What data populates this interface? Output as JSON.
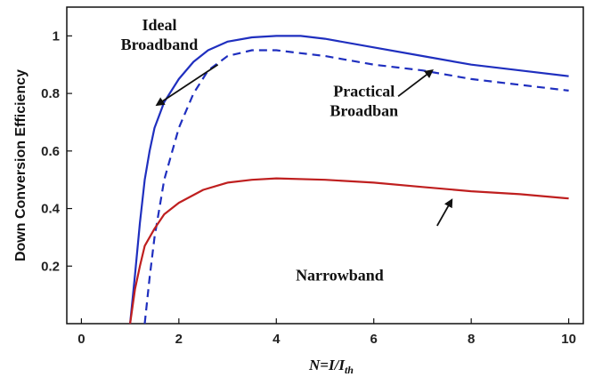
{
  "chart_data": {
    "type": "line",
    "title": "",
    "ylabel": "Down Conversion Efficiency",
    "xlabel": {
      "main": "N=I/I",
      "sub": "th"
    },
    "xlim": [
      -0.3,
      10.3
    ],
    "ylim": [
      0,
      1.1
    ],
    "xticks": [
      0,
      2,
      4,
      6,
      8,
      10
    ],
    "yticks": [
      0.2,
      0.4,
      0.6,
      0.8,
      1
    ],
    "xtick_labels": [
      "0",
      "2",
      "4",
      "6",
      "8",
      "10"
    ],
    "ytick_labels": [
      "0.2",
      "0.4",
      "0.6",
      "0.8",
      "1"
    ],
    "grid": false,
    "series": [
      {
        "name": "Ideal Broadband",
        "color": "#1f2fbf",
        "style": "solid",
        "x": [
          1.0,
          1.1,
          1.2,
          1.3,
          1.4,
          1.5,
          1.7,
          2.0,
          2.3,
          2.6,
          3.0,
          3.5,
          4.0,
          4.5,
          5.0,
          6.0,
          7.0,
          8.0,
          9.0,
          10.0
        ],
        "y": [
          0.0,
          0.17,
          0.35,
          0.5,
          0.6,
          0.68,
          0.77,
          0.85,
          0.91,
          0.95,
          0.98,
          0.995,
          1.0,
          1.0,
          0.99,
          0.96,
          0.93,
          0.9,
          0.88,
          0.86
        ]
      },
      {
        "name": "Practical Broadban",
        "color": "#1f2fbf",
        "style": "dashed",
        "x": [
          1.3,
          1.4,
          1.5,
          1.7,
          2.0,
          2.3,
          2.6,
          3.0,
          3.5,
          4.0,
          4.5,
          5.0,
          6.0,
          7.0,
          8.0,
          9.0,
          10.0
        ],
        "y": [
          0.0,
          0.16,
          0.3,
          0.5,
          0.68,
          0.8,
          0.88,
          0.93,
          0.95,
          0.95,
          0.94,
          0.93,
          0.9,
          0.88,
          0.85,
          0.83,
          0.81
        ]
      },
      {
        "name": "Narrowband",
        "color": "#bf1f1f",
        "style": "solid",
        "x": [
          1.0,
          1.1,
          1.2,
          1.3,
          1.5,
          1.7,
          2.0,
          2.5,
          3.0,
          3.5,
          4.0,
          5.0,
          6.0,
          7.0,
          8.0,
          9.0,
          10.0
        ],
        "y": [
          0.0,
          0.12,
          0.2,
          0.27,
          0.33,
          0.38,
          0.42,
          0.465,
          0.49,
          0.5,
          0.505,
          0.5,
          0.49,
          0.475,
          0.46,
          0.45,
          0.435
        ]
      }
    ],
    "annotations": [
      {
        "lines": [
          "Ideal",
          "Broadband"
        ],
        "text_at": [
          1.6,
          1.02
        ],
        "arrow_from": [
          2.8,
          0.9
        ],
        "arrow_to": [
          1.55,
          0.76
        ]
      },
      {
        "lines": [
          "Practical",
          "Broadban"
        ],
        "text_at": [
          5.8,
          0.79
        ],
        "arrow_from": [
          6.5,
          0.79
        ],
        "arrow_to": [
          7.2,
          0.88
        ]
      },
      {
        "lines": [
          "Narrowband"
        ],
        "text_at": [
          5.3,
          0.15
        ],
        "arrow_from": [
          7.3,
          0.34
        ],
        "arrow_to": [
          7.6,
          0.43
        ]
      }
    ]
  }
}
